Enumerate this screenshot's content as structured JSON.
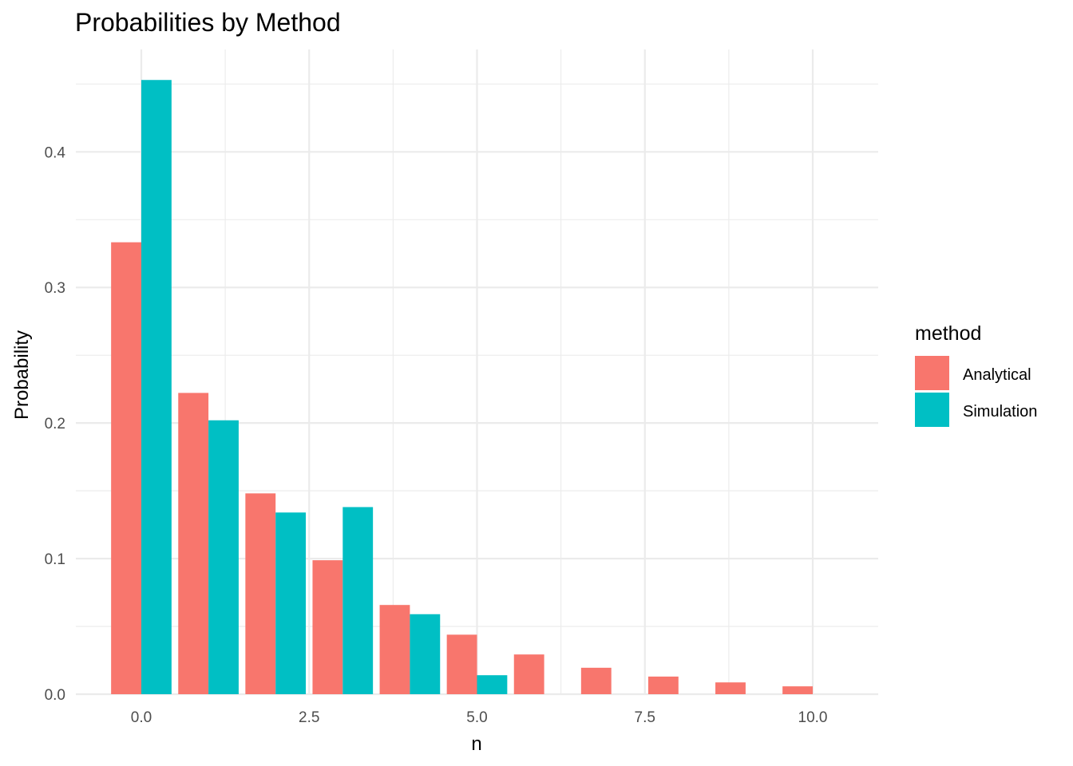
{
  "chart_data": {
    "type": "bar",
    "title": "Probabilities by Method",
    "xlabel": "n",
    "ylabel": "Probability",
    "xlim": [
      -0.975,
      10.975
    ],
    "ylim": [
      0,
      0.4755
    ],
    "x_ticks": [
      0,
      2.5,
      5,
      7.5,
      10
    ],
    "x_tick_labels": [
      "0.0",
      "2.5",
      "5.0",
      "7.5",
      "10.0"
    ],
    "y_ticks": [
      0,
      0.1,
      0.2,
      0.3,
      0.4
    ],
    "y_tick_labels": [
      "0.0",
      "0.1",
      "0.2",
      "0.3",
      "0.4"
    ],
    "grid": true,
    "legend_position": "right",
    "legend_title": "method",
    "bar_width": 0.9,
    "x": [
      0,
      1,
      2,
      3,
      4,
      5,
      6,
      7,
      8,
      9,
      10
    ],
    "series": [
      {
        "name": "Analytical",
        "color": "#F8766D",
        "values": [
          0.3333,
          0.2222,
          0.1481,
          0.0988,
          0.0658,
          0.0439,
          0.0293,
          0.0195,
          0.013,
          0.0087,
          0.0058
        ]
      },
      {
        "name": "Simulation",
        "color": "#00BFC4",
        "values": [
          0.453,
          0.202,
          0.134,
          0.138,
          0.059,
          0.014,
          0,
          0,
          0,
          0,
          0
        ]
      }
    ]
  }
}
